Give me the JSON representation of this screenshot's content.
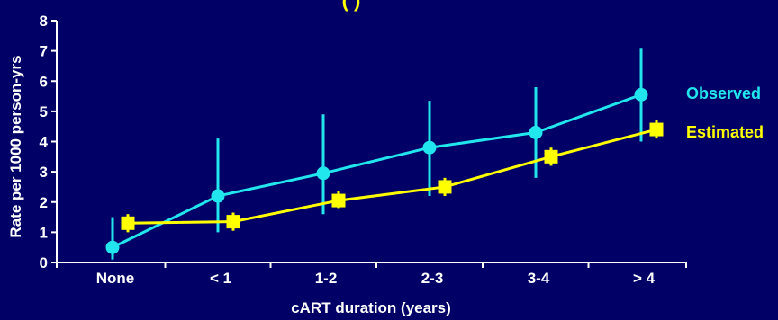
{
  "colors": {
    "background": "#000066",
    "axis": "#ffffff",
    "observed": "#22e6ee",
    "estimated": "#ffff00"
  },
  "chart_data": {
    "type": "line",
    "title_fragment": "(           )",
    "xlabel": "cART duration (years)",
    "ylabel": "Rate per 1000 person-yrs",
    "ylim": [
      0,
      8
    ],
    "yticks": [
      "0",
      "1",
      "2",
      "3",
      "4",
      "5",
      "6",
      "7",
      "8"
    ],
    "categories": [
      "None",
      "< 1",
      "1-2",
      "2-3",
      "3-4",
      "> 4"
    ],
    "grid": false,
    "legend_placement": "right",
    "series": [
      {
        "name": "Observed",
        "marker": "circle",
        "color": "#22e6ee",
        "values": [
          0.5,
          2.2,
          2.95,
          3.8,
          4.3,
          5.55
        ],
        "error_low": [
          0.1,
          1.0,
          1.6,
          2.2,
          2.8,
          4.0
        ],
        "error_high": [
          1.5,
          4.1,
          4.9,
          5.35,
          5.8,
          7.1
        ]
      },
      {
        "name": "Estimated",
        "marker": "square",
        "color": "#ffff00",
        "values": [
          1.3,
          1.35,
          2.05,
          2.5,
          3.5,
          4.4
        ],
        "error_low": [
          1.0,
          1.05,
          1.8,
          2.2,
          3.2,
          4.1
        ],
        "error_high": [
          1.6,
          1.65,
          2.35,
          2.8,
          3.8,
          4.7
        ]
      }
    ]
  }
}
